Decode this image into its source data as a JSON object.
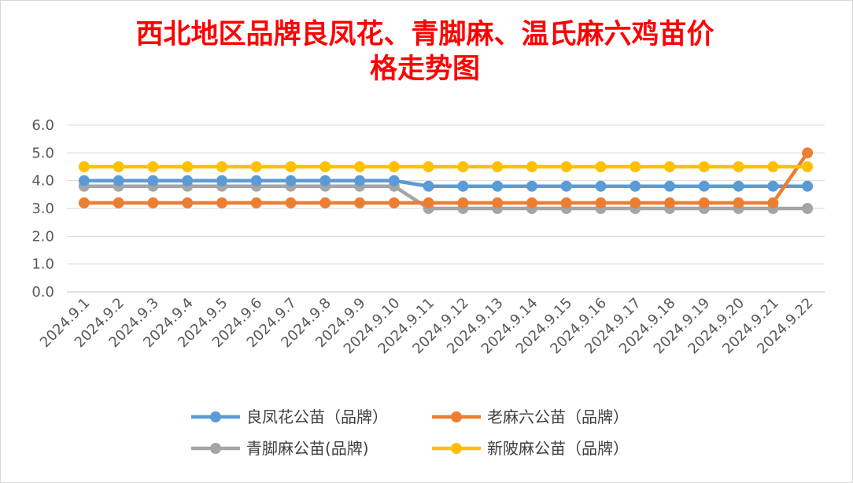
{
  "chart_data": {
    "type": "line",
    "title": "西北地区品牌良凤花、青脚麻、温氏麻六鸡苗价\n格走势图",
    "xlabel": "",
    "ylabel": "",
    "ylim": [
      0,
      6
    ],
    "yticks": [
      "0.0",
      "1.0",
      "2.0",
      "3.0",
      "4.0",
      "5.0",
      "6.0"
    ],
    "grid": true,
    "legend": "bottom",
    "x": [
      "2024.9.1",
      "2024.9.2",
      "2024.9.3",
      "2024.9.4",
      "2024.9.5",
      "2024.9.6",
      "2024.9.7",
      "2024.9.8",
      "2024.9.9",
      "2024.9.10",
      "2024.9.11",
      "2024.9.12",
      "2024.9.13",
      "2024.9.14",
      "2024.9.15",
      "2024.9.16",
      "2024.9.17",
      "2024.9.18",
      "2024.9.19",
      "2024.9.20",
      "2024.9.21",
      "2024.9.22"
    ],
    "series": [
      {
        "name": "良凤花公苗（品牌）",
        "color": "#5b9bd5",
        "values": [
          4.0,
          4.0,
          4.0,
          4.0,
          4.0,
          4.0,
          4.0,
          4.0,
          4.0,
          4.0,
          3.8,
          3.8,
          3.8,
          3.8,
          3.8,
          3.8,
          3.8,
          3.8,
          3.8,
          3.8,
          3.8,
          3.8
        ]
      },
      {
        "name": "老麻六公苗（品牌）",
        "color": "#ed7d31",
        "values": [
          3.2,
          3.2,
          3.2,
          3.2,
          3.2,
          3.2,
          3.2,
          3.2,
          3.2,
          3.2,
          3.2,
          3.2,
          3.2,
          3.2,
          3.2,
          3.2,
          3.2,
          3.2,
          3.2,
          3.2,
          3.2,
          5.0
        ]
      },
      {
        "name": "青脚麻公苗(品牌)",
        "color": "#a5a5a5",
        "values": [
          3.8,
          3.8,
          3.8,
          3.8,
          3.8,
          3.8,
          3.8,
          3.8,
          3.8,
          3.8,
          3.0,
          3.0,
          3.0,
          3.0,
          3.0,
          3.0,
          3.0,
          3.0,
          3.0,
          3.0,
          3.0,
          3.0
        ]
      },
      {
        "name": "新陂麻公苗（品牌）",
        "color": "#ffc000",
        "values": [
          4.5,
          4.5,
          4.5,
          4.5,
          4.5,
          4.5,
          4.5,
          4.5,
          4.5,
          4.5,
          4.5,
          4.5,
          4.5,
          4.5,
          4.5,
          4.5,
          4.5,
          4.5,
          4.5,
          4.5,
          4.5,
          4.5
        ]
      }
    ]
  }
}
